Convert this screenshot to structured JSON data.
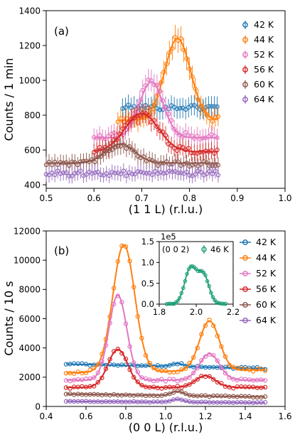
{
  "chart_data": [
    {
      "type": "scatter",
      "panel_label": "(a)",
      "xlabel": "(1 1 L) (r.l.u.)",
      "ylabel": "Counts / 1 min",
      "xlim": [
        0.5,
        1.0
      ],
      "ylim": [
        380,
        1400
      ],
      "xticks": [
        "0.5",
        "0.6",
        "0.7",
        "0.8",
        "0.9",
        "1.0"
      ],
      "yticks": [
        "400",
        "600",
        "800",
        "1000",
        "1200",
        "1400"
      ],
      "legend_position": "top-right",
      "markers": "open circles with error bars",
      "fit_lines": "solid",
      "series": [
        {
          "name": "42 K",
          "color": "#1f77b4",
          "x_range": [
            0.66,
            0.86
          ],
          "data_base": 845,
          "fit_base": 830,
          "peaks": [],
          "noise": 15
        },
        {
          "name": "44 K",
          "color": "#ff7f0e",
          "x_range": [
            0.65,
            0.86
          ],
          "data_base": 770,
          "fit_base": 770,
          "peaks": [
            {
              "center": 0.775,
              "sigma": 0.027,
              "amp": 470
            }
          ],
          "noise": 20
        },
        {
          "name": "52 K",
          "color": "#e377c2",
          "x_range": [
            0.6,
            0.86
          ],
          "data_base": 680,
          "fit_base": 670,
          "peaks": [
            {
              "center": 0.72,
              "sigma": 0.025,
              "amp": 320
            }
          ],
          "noise": 18
        },
        {
          "name": "56 K",
          "color": "#d62728",
          "x_range": [
            0.6,
            0.86
          ],
          "data_base": 590,
          "fit_base": 590,
          "peaks": [
            {
              "center": 0.7,
              "sigma": 0.035,
              "amp": 220
            }
          ],
          "noise": 18
        },
        {
          "name": "60 K",
          "color": "#8c564b",
          "x_range": [
            0.5,
            0.86
          ],
          "data_base": 520,
          "fit_base": 525,
          "peaks": [
            {
              "center": 0.655,
              "sigma": 0.03,
              "amp": 110
            }
          ],
          "noise": 15
        },
        {
          "name": "64 K",
          "color": "#9467bd",
          "x_range": [
            0.5,
            0.86
          ],
          "data_base": 465,
          "fit_base": 460,
          "peaks": [],
          "noise": 15
        }
      ]
    },
    {
      "type": "scatter",
      "panel_label": "(b)",
      "xlabel": "(0 0 L) (r.l.u.)",
      "ylabel": "Counts / 10 s",
      "xlim": [
        0.4,
        1.6
      ],
      "ylim": [
        0,
        12000
      ],
      "xticks": [
        "0.4",
        "0.6",
        "0.8",
        "1.0",
        "1.2",
        "1.4",
        "1.6"
      ],
      "yticks": [
        "0",
        "2000",
        "4000",
        "6000",
        "8000",
        "10000",
        "12000"
      ],
      "legend_position": "right",
      "markers": "open circles",
      "fit_lines": "solid",
      "series": [
        {
          "name": "42 K",
          "color": "#1f77b4",
          "x_range": [
            0.5,
            1.5
          ],
          "base": 2900,
          "slope": -300,
          "peaks": [
            {
              "center": 1.06,
              "sigma": 0.03,
              "amp": 200
            }
          ],
          "noise": 60
        },
        {
          "name": "44 K",
          "color": "#ff7f0e",
          "x_range": [
            0.5,
            1.5
          ],
          "base": 2300,
          "slope": 200,
          "peaks": [
            {
              "center": 0.79,
              "sigma": 0.055,
              "amp": 8700
            },
            {
              "center": 1.22,
              "sigma": 0.05,
              "amp": 3400
            }
          ],
          "noise": 100
        },
        {
          "name": "52 K",
          "color": "#e377c2",
          "x_range": [
            0.5,
            1.5
          ],
          "base": 1800,
          "slope": 0,
          "peaks": [
            {
              "center": 0.76,
              "sigma": 0.045,
              "amp": 5800
            },
            {
              "center": 1.22,
              "sigma": 0.05,
              "amp": 1800
            }
          ],
          "noise": 90
        },
        {
          "name": "56 K",
          "color": "#d62728",
          "x_range": [
            0.5,
            1.5
          ],
          "base": 1300,
          "slope": 0,
          "peaks": [
            {
              "center": 0.76,
              "sigma": 0.05,
              "amp": 2600
            },
            {
              "center": 1.2,
              "sigma": 0.05,
              "amp": 800
            }
          ],
          "noise": 70
        },
        {
          "name": "60 K",
          "color": "#8c564b",
          "x_range": [
            0.5,
            1.5
          ],
          "base": 850,
          "slope": -200,
          "peaks": [
            {
              "center": 1.06,
              "sigma": 0.03,
              "amp": 300
            }
          ],
          "noise": 40
        },
        {
          "name": "64 K",
          "color": "#9467bd",
          "x_range": [
            0.5,
            1.5
          ],
          "base": 350,
          "slope": -100,
          "peaks": [
            {
              "center": 1.06,
              "sigma": 0.03,
              "amp": 200
            }
          ],
          "noise": 30
        }
      ],
      "inset": {
        "type": "scatter",
        "label": "(0 0 2)",
        "xlim": [
          1.8,
          2.2
        ],
        "ylim": [
          0,
          1.5
        ],
        "y_scale_label": "1e5",
        "xticks": [
          "1.8",
          "2.0",
          "2.2"
        ],
        "yticks": [
          "0.0",
          "0.5",
          "1.0",
          "1.5"
        ],
        "series": [
          {
            "name": "46 K",
            "color": "#1a9e77",
            "x_range": [
              1.84,
              2.16
            ],
            "peaks": [
              {
                "center": 1.97,
                "sigma": 0.032,
                "amp": 0.86
              },
              {
                "center": 2.04,
                "sigma": 0.03,
                "amp": 0.68
              }
            ]
          }
        ]
      }
    }
  ]
}
